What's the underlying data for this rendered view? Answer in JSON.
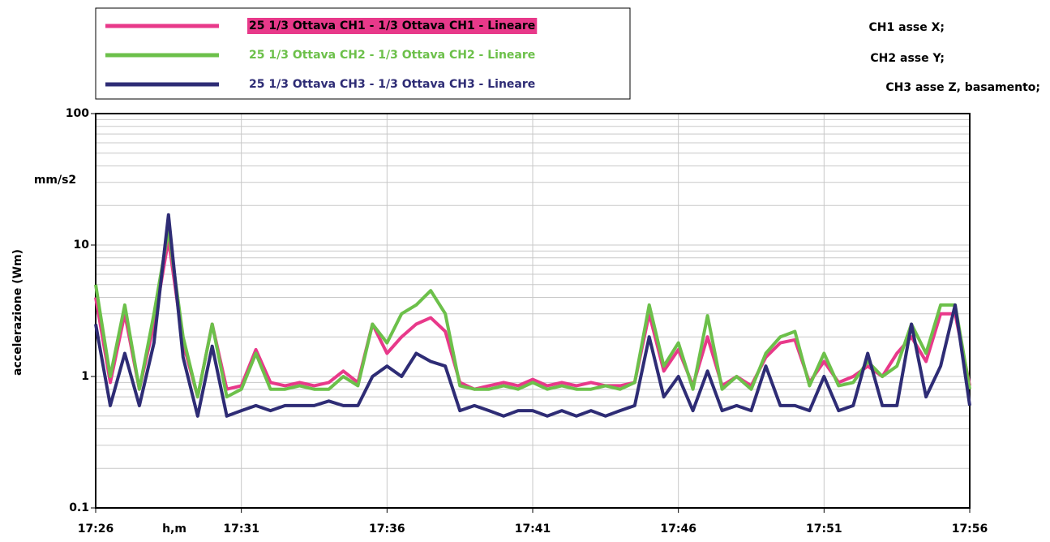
{
  "chart_data": {
    "type": "line",
    "log_y": true,
    "grid": true,
    "minor_grid": true,
    "y_label": "accelerazione (Wm)",
    "y_unit": "mm/s2",
    "x_label": "h,m",
    "annotations": [
      "CH1 asse X;",
      "CH2 asse Y;",
      "CH3 asse Z, basamento;"
    ],
    "xlim": [
      1046,
      1076
    ],
    "xticks": [
      {
        "value": 1046,
        "label": "17:26"
      },
      {
        "value": 1051,
        "label": "17:31"
      },
      {
        "value": 1056,
        "label": "17:36"
      },
      {
        "value": 1061,
        "label": "17:41"
      },
      {
        "value": 1066,
        "label": "17:46"
      },
      {
        "value": 1071,
        "label": "17:51"
      },
      {
        "value": 1076,
        "label": "17:56"
      }
    ],
    "ylim": [
      0.1,
      100
    ],
    "yticks": [
      0.1,
      1,
      10,
      100
    ],
    "x": [
      1046,
      1046.5,
      1047,
      1047.5,
      1048,
      1048.5,
      1049,
      1049.5,
      1050,
      1050.5,
      1051,
      1051.5,
      1052,
      1052.5,
      1053,
      1053.5,
      1054,
      1054.5,
      1055,
      1055.5,
      1056,
      1056.5,
      1057,
      1057.5,
      1058,
      1058.5,
      1059,
      1059.5,
      1060,
      1060.5,
      1061,
      1061.5,
      1062,
      1062.5,
      1063,
      1063.5,
      1064,
      1064.5,
      1065,
      1065.5,
      1066,
      1066.5,
      1067,
      1067.5,
      1068,
      1068.5,
      1069,
      1069.5,
      1070,
      1070.5,
      1071,
      1071.5,
      1072,
      1072.5,
      1073,
      1073.5,
      1074,
      1074.5,
      1075,
      1075.5,
      1076
    ],
    "series": [
      {
        "name": "25 1/3 Ottava CH1 - 1/3 Ottava CH1 - Lineare",
        "color": "#e8398a",
        "values": [
          4,
          0.9,
          3,
          0.8,
          2.5,
          11,
          1.8,
          0.7,
          2.5,
          0.8,
          0.85,
          1.6,
          0.9,
          0.85,
          0.9,
          0.85,
          0.9,
          1.1,
          0.9,
          2.5,
          1.5,
          2,
          2.5,
          2.8,
          2.2,
          0.9,
          0.8,
          0.85,
          0.9,
          0.85,
          0.95,
          0.85,
          0.9,
          0.85,
          0.9,
          0.85,
          0.85,
          0.9,
          3,
          1.1,
          1.6,
          0.85,
          2,
          0.85,
          1,
          0.85,
          1.4,
          1.8,
          1.9,
          0.9,
          1.3,
          0.9,
          1,
          1.2,
          1,
          1.5,
          2,
          1.3,
          3,
          3,
          0.85
        ]
      },
      {
        "name": "25 1/3 Ottava CH2 - 1/3 Ottava CH2 - Lineare",
        "color": "#6cc04a",
        "values": [
          5,
          1,
          3.5,
          0.8,
          3,
          13,
          2,
          0.7,
          2.5,
          0.7,
          0.8,
          1.5,
          0.8,
          0.8,
          0.85,
          0.8,
          0.8,
          1,
          0.85,
          2.5,
          1.8,
          3,
          3.5,
          4.5,
          3,
          0.85,
          0.8,
          0.8,
          0.85,
          0.8,
          0.9,
          0.8,
          0.85,
          0.8,
          0.8,
          0.85,
          0.8,
          0.9,
          3.5,
          1.2,
          1.8,
          0.8,
          2.9,
          0.8,
          1,
          0.8,
          1.5,
          2,
          2.2,
          0.85,
          1.5,
          0.85,
          0.9,
          1.3,
          1,
          1.2,
          2.5,
          1.5,
          3.5,
          3.5,
          0.8
        ]
      },
      {
        "name": "25 1/3 Ottava CH3 - 1/3 Ottava CH3 - Lineare",
        "color": "#2e2c75",
        "values": [
          2.5,
          0.6,
          1.5,
          0.6,
          1.8,
          17,
          1.4,
          0.5,
          1.7,
          0.5,
          0.55,
          0.6,
          0.55,
          0.6,
          0.6,
          0.6,
          0.65,
          0.6,
          0.6,
          1,
          1.2,
          1,
          1.5,
          1.3,
          1.2,
          0.55,
          0.6,
          0.55,
          0.5,
          0.55,
          0.55,
          0.5,
          0.55,
          0.5,
          0.55,
          0.5,
          0.55,
          0.6,
          2,
          0.7,
          1,
          0.55,
          1.1,
          0.55,
          0.6,
          0.55,
          1.2,
          0.6,
          0.6,
          0.55,
          1,
          0.55,
          0.6,
          1.5,
          0.6,
          0.6,
          2.5,
          0.7,
          1.2,
          3.5,
          0.6
        ]
      }
    ]
  }
}
